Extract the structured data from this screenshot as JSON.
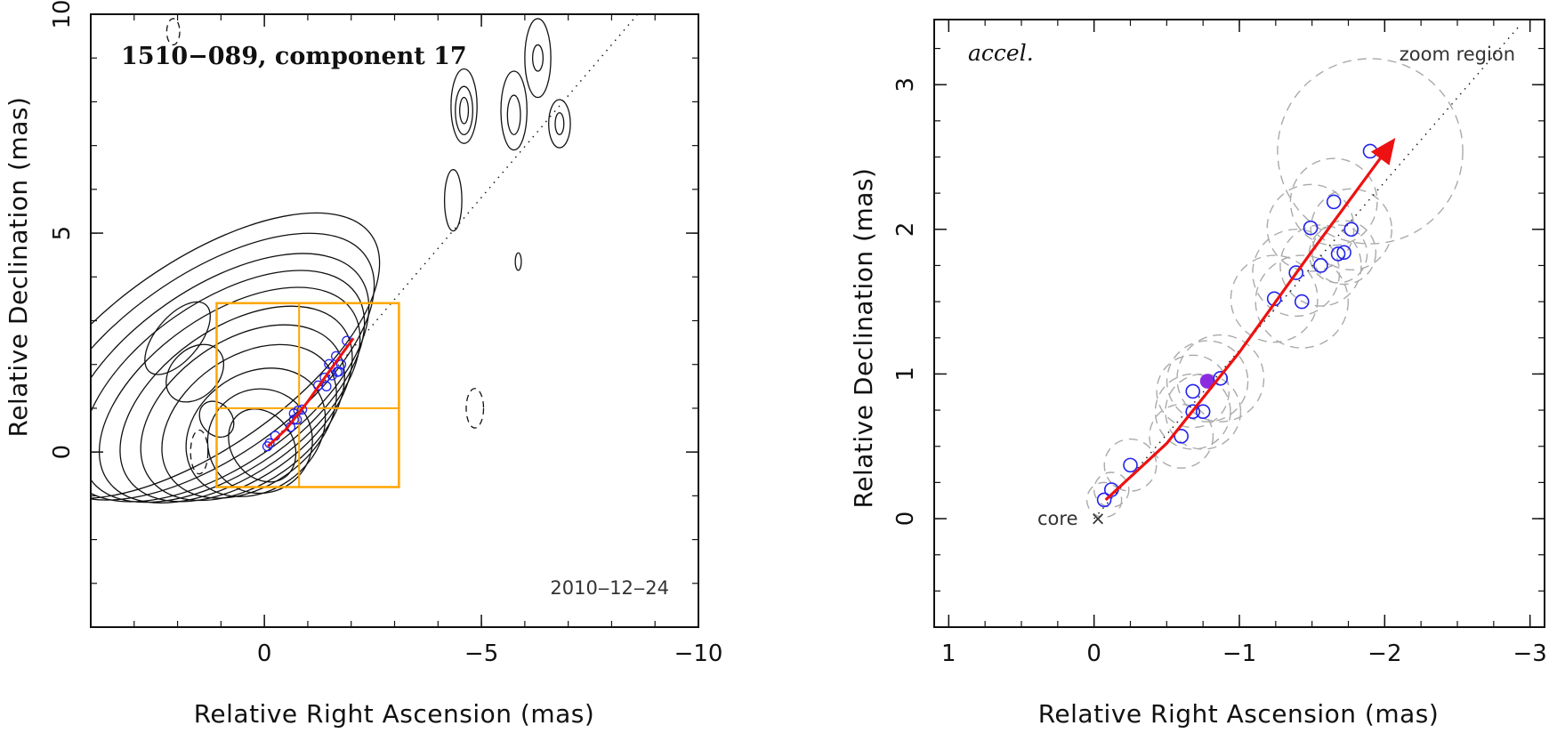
{
  "chart_data": [
    {
      "type": "scatter",
      "title": "1510−089, component 17",
      "date": "2010‒12‒24",
      "xlabel": "Relative Right Ascension (mas)",
      "ylabel": "Relative Declination (mas)",
      "xlim": [
        4,
        -10
      ],
      "ylim": [
        -4,
        10
      ],
      "xticks": [
        0,
        -5,
        -10
      ],
      "xtick_labels": [
        "0",
        "−5",
        "−10"
      ],
      "yticks": [
        0,
        5,
        10
      ],
      "ytick_labels": [
        "0",
        "5",
        "10"
      ],
      "contours": [
        {
          "cx": 0.05,
          "cy": 0.15,
          "rx": 0.9,
          "ry": 0.7,
          "angle": 55
        },
        {
          "cx": 0.1,
          "cy": 0.25,
          "rx": 1.2,
          "ry": 1.2,
          "angle": 55
        },
        {
          "cx": 0.2,
          "cy": 0.45,
          "rx": 1.35,
          "ry": 1.7,
          "angle": 55
        },
        {
          "cx": 0.35,
          "cy": 0.7,
          "rx": 1.5,
          "ry": 2.2,
          "angle": 55
        },
        {
          "cx": 0.5,
          "cy": 0.9,
          "rx": 1.65,
          "ry": 2.6,
          "angle": 55
        },
        {
          "cx": 0.65,
          "cy": 1.1,
          "rx": 1.75,
          "ry": 3.0,
          "angle": 55
        },
        {
          "cx": 0.8,
          "cy": 1.3,
          "rx": 1.85,
          "ry": 3.4,
          "angle": 55
        },
        {
          "cx": 0.95,
          "cy": 1.5,
          "rx": 1.95,
          "ry": 3.7,
          "angle": 55
        },
        {
          "cx": 1.1,
          "cy": 1.7,
          "rx": 2.05,
          "ry": 4.0,
          "angle": 55
        },
        {
          "cx": 1.3,
          "cy": 1.95,
          "rx": 2.1,
          "ry": 4.4,
          "angle": 55
        },
        {
          "cx": 1.5,
          "cy": 2.2,
          "rx": 2.15,
          "ry": 4.8,
          "angle": 55
        },
        {
          "cx": 1.1,
          "cy": 0.75,
          "rx": 0.45,
          "ry": 0.35,
          "angle": 50
        },
        {
          "cx": 1.6,
          "cy": 1.8,
          "rx": 0.55,
          "ry": 0.75,
          "angle": 45
        },
        {
          "cx": 2.0,
          "cy": 2.6,
          "rx": 0.5,
          "ry": 1.0,
          "angle": 40
        },
        {
          "cx": -4.6,
          "cy": 7.9,
          "rx": 0.3,
          "ry": 0.85,
          "angle": 0
        },
        {
          "cx": -4.6,
          "cy": 7.8,
          "rx": 0.2,
          "ry": 0.55,
          "angle": 0
        },
        {
          "cx": -4.6,
          "cy": 7.8,
          "rx": 0.1,
          "ry": 0.3,
          "angle": 0
        },
        {
          "cx": -5.75,
          "cy": 7.8,
          "rx": 0.3,
          "ry": 0.9,
          "angle": 0
        },
        {
          "cx": -5.75,
          "cy": 7.7,
          "rx": 0.15,
          "ry": 0.45,
          "angle": 0
        },
        {
          "cx": -6.3,
          "cy": 9.0,
          "rx": 0.3,
          "ry": 0.9,
          "angle": 0
        },
        {
          "cx": -6.3,
          "cy": 9.0,
          "rx": 0.12,
          "ry": 0.3,
          "angle": 0
        },
        {
          "cx": -6.8,
          "cy": 7.5,
          "rx": 0.25,
          "ry": 0.55,
          "angle": 0
        },
        {
          "cx": -6.8,
          "cy": 7.5,
          "rx": 0.1,
          "ry": 0.25,
          "angle": 0
        },
        {
          "cx": -4.35,
          "cy": 5.75,
          "rx": 0.2,
          "ry": 0.7,
          "angle": 0
        },
        {
          "cx": -5.85,
          "cy": 4.35,
          "rx": 0.07,
          "ry": 0.2,
          "angle": 0
        },
        {
          "cx": 2.1,
          "cy": 9.6,
          "rx": 0.15,
          "ry": 0.3,
          "angle": 0,
          "dashed": true
        },
        {
          "cx": 1.5,
          "cy": 0.0,
          "rx": 0.2,
          "ry": 0.5,
          "angle": 0,
          "dashed": true
        },
        {
          "cx": -4.85,
          "cy": 1.0,
          "rx": 0.2,
          "ry": 0.45,
          "angle": 0,
          "dashed": true
        }
      ],
      "orange_box": {
        "x_range": [
          1.1,
          -3.1
        ],
        "y_range": [
          -0.8,
          3.4
        ],
        "cross": [
          -0.8,
          1.0
        ]
      },
      "ridge_line": [
        [
          0,
          0
        ],
        [
          -8.6,
          10
        ]
      ],
      "points_x": [
        -0.07,
        -0.12,
        -0.25,
        -0.6,
        -0.68,
        -0.68,
        -0.75,
        -0.78,
        -0.87,
        -1.24,
        -1.39,
        -1.43,
        -1.49,
        -1.56,
        -1.65,
        -1.68,
        -1.72,
        -1.77,
        -1.9
      ],
      "points_y": [
        0.13,
        0.2,
        0.37,
        0.57,
        0.88,
        0.74,
        0.74,
        0.95,
        0.97,
        1.52,
        1.7,
        1.5,
        2.01,
        1.75,
        2.19,
        1.83,
        1.84,
        2.0,
        2.54
      ],
      "trajectory_x": [
        -0.08,
        -0.5,
        -1.0,
        -1.5,
        -2.05
      ],
      "trajectory_y": [
        0.13,
        0.52,
        1.15,
        1.85,
        2.6
      ]
    },
    {
      "type": "scatter",
      "title": "accel.",
      "xlabel": "Relative Right Ascension (mas)",
      "ylabel": "Relative Declination (mas)",
      "xlim": [
        1.1,
        -3.1
      ],
      "ylim": [
        -0.75,
        3.45
      ],
      "xticks": [
        1,
        0,
        -1,
        -2,
        -3
      ],
      "xtick_labels": [
        "1",
        "0",
        "−1",
        "−2",
        "−3"
      ],
      "yticks": [
        0,
        1,
        2,
        3
      ],
      "ytick_labels": [
        "0",
        "1",
        "2",
        "3"
      ],
      "zoom_label": "zoom region",
      "core_label": "core",
      "core_marker": "×",
      "ridge_line": [
        [
          0,
          0
        ],
        [
          -2.93,
          3.41
        ]
      ],
      "points": [
        {
          "x": -0.07,
          "y": 0.13,
          "r": 0.12
        },
        {
          "x": -0.12,
          "y": 0.2,
          "r": 0.12
        },
        {
          "x": -0.25,
          "y": 0.37,
          "r": 0.18
        },
        {
          "x": -0.6,
          "y": 0.57,
          "r": 0.22
        },
        {
          "x": -0.68,
          "y": 0.88,
          "r": 0.25
        },
        {
          "x": -0.68,
          "y": 0.74,
          "r": 0.26
        },
        {
          "x": -0.75,
          "y": 0.74,
          "r": 0.26
        },
        {
          "x": -0.78,
          "y": 0.95,
          "r": 0.28,
          "filled": true
        },
        {
          "x": -0.87,
          "y": 0.97,
          "r": 0.3
        },
        {
          "x": -1.24,
          "y": 1.52,
          "r": 0.3
        },
        {
          "x": -1.39,
          "y": 1.7,
          "r": 0.3
        },
        {
          "x": -1.43,
          "y": 1.5,
          "r": 0.32
        },
        {
          "x": -1.49,
          "y": 2.01,
          "r": 0.3
        },
        {
          "x": -1.56,
          "y": 1.75,
          "r": 0.28
        },
        {
          "x": -1.65,
          "y": 2.19,
          "r": 0.3
        },
        {
          "x": -1.68,
          "y": 1.83,
          "r": 0.2
        },
        {
          "x": -1.72,
          "y": 1.84,
          "r": 0.22
        },
        {
          "x": -1.77,
          "y": 2.0,
          "r": 0.28
        },
        {
          "x": -1.9,
          "y": 2.54,
          "r": 0.64
        }
      ],
      "trajectory_x": [
        -0.08,
        -0.5,
        -1.0,
        -1.5,
        -2.05
      ],
      "trajectory_y": [
        0.13,
        0.52,
        1.15,
        1.85,
        2.6
      ]
    }
  ],
  "colors": {
    "points": "#2222ee",
    "filled_point": "#8a2be2",
    "trajectory": "#ee1111",
    "box": "#ffa500",
    "contour": "#111111",
    "dashed_circle": "#aaaaaa",
    "axes": "#111111"
  }
}
